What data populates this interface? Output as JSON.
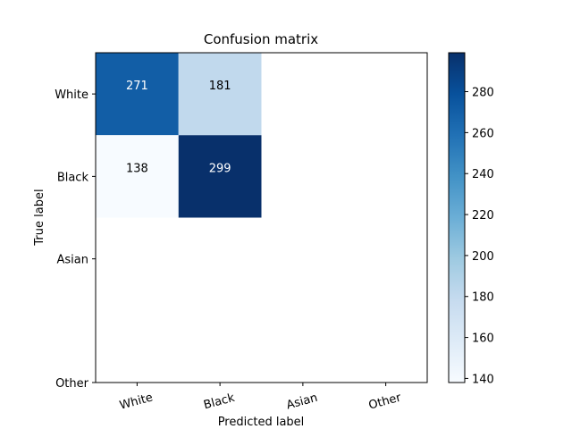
{
  "chart_data": {
    "type": "heatmap",
    "title": "Confusion matrix",
    "xlabel": "Predicted label",
    "ylabel": "True label",
    "x_categories": [
      "White",
      "Black",
      "Asian",
      "Other"
    ],
    "y_categories": [
      "White",
      "Black",
      "Asian",
      "Other"
    ],
    "cells": [
      {
        "row": 0,
        "col": 0,
        "value": 271,
        "label": "271"
      },
      {
        "row": 0,
        "col": 1,
        "value": 181,
        "label": "181"
      },
      {
        "row": 1,
        "col": 0,
        "value": 138,
        "label": "138"
      },
      {
        "row": 1,
        "col": 1,
        "value": 299,
        "label": "299"
      }
    ],
    "colormap": "Blues",
    "colormap_stops": [
      "#f7fbff",
      "#deebf7",
      "#c6dbef",
      "#9ecae1",
      "#6baed6",
      "#4292c6",
      "#2171b5",
      "#08519c",
      "#08306b"
    ],
    "value_range": [
      138,
      299
    ],
    "colorbar_ticks": [
      "140",
      "160",
      "180",
      "200",
      "220",
      "240",
      "260",
      "280"
    ],
    "colorbar_tick_values": [
      140,
      160,
      180,
      200,
      220,
      240,
      260,
      280
    ],
    "x_tick_rotation": 15,
    "grid": false
  }
}
